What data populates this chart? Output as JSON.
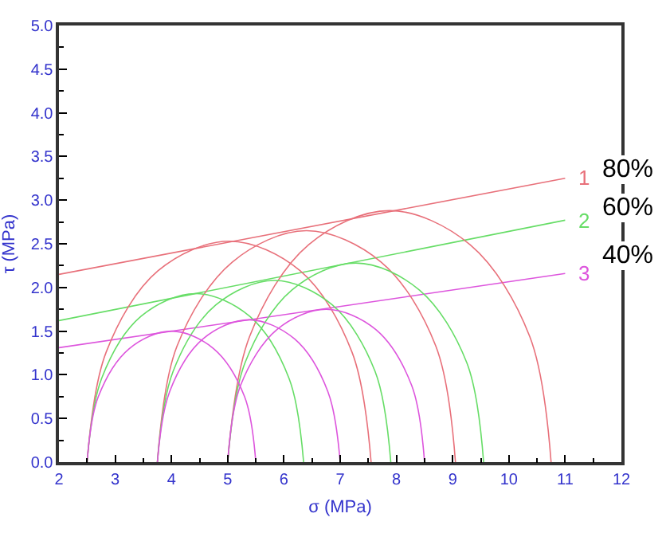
{
  "chart_data": {
    "type": "line",
    "xlabel": "σ (MPa)",
    "ylabel": "τ (MPa)",
    "xlim": [
      2,
      12
    ],
    "xticks": [
      2,
      3,
      4,
      5,
      6,
      7,
      8,
      9,
      10,
      11,
      12
    ],
    "ylim": [
      0,
      5
    ],
    "yticks": [
      {
        "value": 0,
        "label": "0.0"
      },
      {
        "value": 0.5,
        "label": "0.5"
      },
      {
        "value": 1,
        "label": "1.0"
      },
      {
        "value": 1.5,
        "label": "1.5"
      },
      {
        "value": 2,
        "label": "2.0"
      },
      {
        "value": 2.5,
        "label": "2.5"
      },
      {
        "value": 3,
        "label": "3.0"
      },
      {
        "value": 3.5,
        "label": "3.5"
      },
      {
        "value": 4,
        "label": "4.0"
      },
      {
        "value": 4.5,
        "label": "4.5"
      },
      {
        "value": 5,
        "label": "5.0"
      }
    ],
    "grid": false,
    "legend": false,
    "series": [
      {
        "name": "1",
        "color": "#e8707a",
        "x": [
          2,
          11
        ],
        "values": [
          2.15,
          3.25
        ]
      },
      {
        "name": "2",
        "color": "#66dd66",
        "x": [
          2,
          11
        ],
        "values": [
          1.62,
          2.77
        ]
      },
      {
        "name": "3",
        "color": "#dd55dd",
        "x": [
          2,
          11
        ],
        "values": [
          1.31,
          2.16
        ]
      },
      {
        "color": "#e8707a",
        "x": [
          2.5,
          2.84,
          3.76,
          5.03,
          6.29,
          7.21,
          7.55
        ],
        "values": [
          0,
          1.26,
          2.19,
          2.53,
          2.19,
          1.26,
          0
        ]
      },
      {
        "color": "#e8707a",
        "x": [
          3.75,
          4.1,
          5.08,
          6.4,
          7.73,
          8.7,
          9.05
        ],
        "values": [
          0,
          1.33,
          2.29,
          2.65,
          2.29,
          1.33,
          0
        ]
      },
      {
        "color": "#e8707a",
        "x": [
          5.0,
          5.39,
          6.44,
          7.88,
          9.31,
          10.37,
          10.75
        ],
        "values": [
          0,
          1.44,
          2.49,
          2.88,
          2.49,
          1.44,
          0
        ]
      },
      {
        "color": "#66dd66",
        "x": [
          2.5,
          2.76,
          3.46,
          4.43,
          5.39,
          6.09,
          6.35
        ],
        "values": [
          0,
          0.96,
          1.67,
          1.93,
          1.67,
          0.96,
          0
        ]
      },
      {
        "color": "#66dd66",
        "x": [
          3.75,
          4.03,
          4.79,
          5.83,
          6.86,
          7.62,
          7.9
        ],
        "values": [
          0,
          1.04,
          1.8,
          2.08,
          1.8,
          1.04,
          0
        ]
      },
      {
        "color": "#66dd66",
        "x": [
          5.0,
          5.31,
          6.14,
          7.28,
          8.41,
          9.25,
          9.55
        ],
        "values": [
          0,
          1.14,
          1.97,
          2.28,
          1.97,
          1.14,
          0
        ]
      },
      {
        "color": "#dd55dd",
        "x": [
          2.5,
          2.7,
          3.25,
          4,
          4.75,
          5.3,
          5.5
        ],
        "values": [
          0,
          0.75,
          1.3,
          1.5,
          1.3,
          0.75,
          0
        ]
      },
      {
        "color": "#dd55dd",
        "x": [
          3.75,
          3.97,
          4.56,
          5.38,
          6.19,
          6.78,
          7.0
        ],
        "values": [
          0,
          0.81,
          1.41,
          1.63,
          1.41,
          0.81,
          0
        ]
      },
      {
        "color": "#dd55dd",
        "x": [
          5.0,
          5.23,
          5.88,
          6.75,
          7.63,
          8.27,
          8.5
        ],
        "values": [
          0,
          0.88,
          1.52,
          1.75,
          1.52,
          0.88,
          0
        ]
      }
    ],
    "annotations": [
      "80%",
      "60%",
      "40%"
    ]
  }
}
